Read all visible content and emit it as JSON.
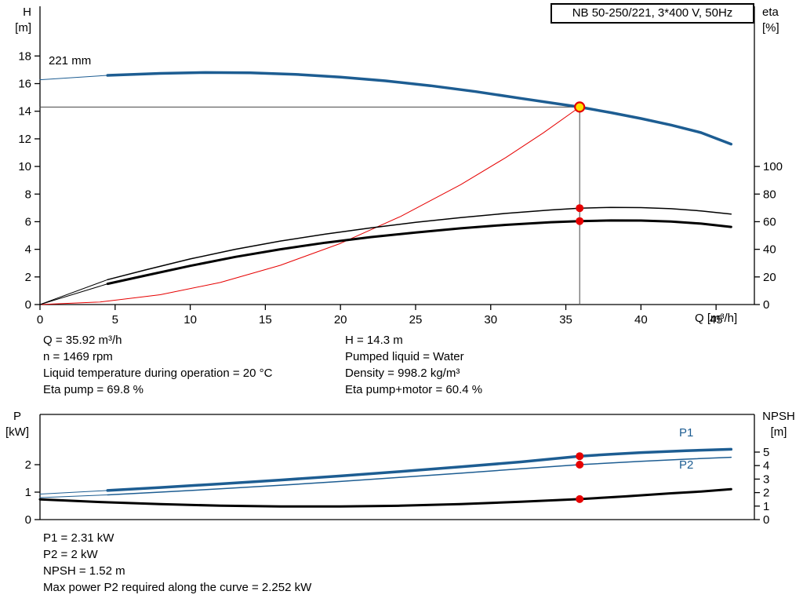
{
  "colors": {
    "curve_blue": "#1d5d92",
    "curve_black": "#000000",
    "system_red": "#e60000",
    "duty_yellow": "#ffe100",
    "ref_gray": "#444444"
  },
  "info": {
    "top_left": [
      "Q = 35.92 m³/h",
      "n = 1469 rpm",
      "Liquid temperature during operation = 20 °C",
      "Eta pump = 69.8 %"
    ],
    "top_right": [
      "H = 14.3 m",
      "Pumped liquid = Water",
      "Density = 998.2 kg/m³",
      "Eta pump+motor = 60.4 %"
    ],
    "bottom": [
      "P1 = 2.31 kW",
      "P2 = 2 kW",
      "NPSH = 1.52 m",
      "Max power P2 required along the curve = 2.252 kW"
    ]
  },
  "chart_data": [
    {
      "type": "line",
      "svg": "top-chart-svg",
      "title": "NB 50-250/221, 3*400 V, 50Hz",
      "impeller_label": "221 mm",
      "x_axis": {
        "title": "Q [m³/h]",
        "lim": [
          0,
          47.55
        ],
        "ticks": [
          0,
          5,
          10,
          15,
          20,
          25,
          30,
          35,
          40,
          45
        ]
      },
      "y_left": {
        "title": "H",
        "unit": "[m]",
        "lim": [
          0,
          21.6
        ],
        "ticks": [
          0,
          2,
          4,
          6,
          8,
          10,
          12,
          14,
          16,
          18
        ]
      },
      "y_right": {
        "title": "eta",
        "unit": "[%]",
        "lim": [
          0,
          216
        ],
        "ticks": [
          0,
          20,
          40,
          60,
          80,
          100
        ]
      },
      "frame": [
        "left",
        "bottom",
        "right"
      ],
      "grid": false,
      "duty_point": {
        "q": 35.92,
        "h": 14.3,
        "eta_pump": 69.8,
        "eta_pump_motor": 60.4
      },
      "series": [
        {
          "name": "duty-flow-refline",
          "axis": "left",
          "color": "#444444",
          "width": 1,
          "points": [
            [
              35.92,
              0
            ],
            [
              35.92,
              14.3
            ]
          ]
        },
        {
          "name": "duty-head-refline",
          "axis": "left",
          "color": "#444444",
          "width": 1,
          "points": [
            [
              0,
              14.3
            ],
            [
              35.92,
              14.3
            ]
          ]
        },
        {
          "name": "system-curve",
          "axis": "left",
          "color": "#e60000",
          "width": 1,
          "points": [
            [
              0,
              0
            ],
            [
              4,
              0.18
            ],
            [
              8,
              0.71
            ],
            [
              12,
              1.6
            ],
            [
              16,
              2.84
            ],
            [
              20,
              4.43
            ],
            [
              24,
              6.38
            ],
            [
              28,
              8.68
            ],
            [
              31,
              10.64
            ],
            [
              33.5,
              12.43
            ],
            [
              35.92,
              14.3
            ]
          ]
        },
        {
          "name": "pump-curve-lead",
          "axis": "left",
          "color": "#1d5d92",
          "width": 1,
          "points": [
            [
              0,
              16.28
            ],
            [
              4.5,
              16.6
            ]
          ]
        },
        {
          "name": "pump-curve-221mm",
          "axis": "left",
          "color": "#1d5d92",
          "width": 3.5,
          "points": [
            [
              4.5,
              16.6
            ],
            [
              8,
              16.74
            ],
            [
              11,
              16.8
            ],
            [
              14,
              16.78
            ],
            [
              17,
              16.67
            ],
            [
              20,
              16.47
            ],
            [
              23,
              16.2
            ],
            [
              26,
              15.85
            ],
            [
              29,
              15.42
            ],
            [
              32,
              14.93
            ],
            [
              35.92,
              14.3
            ],
            [
              38,
              13.9
            ],
            [
              40,
              13.47
            ],
            [
              42,
              13.0
            ],
            [
              44,
              12.45
            ],
            [
              46,
              11.62
            ]
          ]
        },
        {
          "name": "eta-pump-lead",
          "axis": "right",
          "color": "#000000",
          "width": 1,
          "points": [
            [
              0,
              0
            ],
            [
              4.5,
              18
            ]
          ]
        },
        {
          "name": "eta-pump-curve",
          "axis": "right",
          "color": "#000000",
          "width": 1.5,
          "points": [
            [
              4.5,
              18
            ],
            [
              7,
              25
            ],
            [
              10,
              33
            ],
            [
              13,
              40
            ],
            [
              16,
              46
            ],
            [
              19,
              51
            ],
            [
              22,
              55.5
            ],
            [
              25,
              59.5
            ],
            [
              28,
              63
            ],
            [
              31,
              66
            ],
            [
              34,
              68.5
            ],
            [
              35.92,
              69.8
            ],
            [
              38,
              70.3
            ],
            [
              40,
              70.2
            ],
            [
              42,
              69.4
            ],
            [
              44,
              67.8
            ],
            [
              46,
              65.5
            ]
          ]
        },
        {
          "name": "eta-pump-motor-lead",
          "axis": "right",
          "color": "#000000",
          "width": 1,
          "points": [
            [
              0,
              0
            ],
            [
              4.5,
              15
            ]
          ]
        },
        {
          "name": "eta-pump-motor-curve",
          "axis": "right",
          "color": "#000000",
          "width": 3,
          "points": [
            [
              4.5,
              15
            ],
            [
              7,
              21
            ],
            [
              10,
              28
            ],
            [
              13,
              34.5
            ],
            [
              16,
              40
            ],
            [
              19,
              44.8
            ],
            [
              22,
              48.8
            ],
            [
              25,
              52.2
            ],
            [
              28,
              55.2
            ],
            [
              31,
              57.7
            ],
            [
              34,
              59.6
            ],
            [
              35.92,
              60.4
            ],
            [
              38,
              60.9
            ],
            [
              40,
              60.8
            ],
            [
              42,
              60.1
            ],
            [
              44,
              58.6
            ],
            [
              46,
              56.2
            ]
          ]
        }
      ],
      "markers": [
        {
          "name": "duty-point-eta-pump",
          "x": 35.92,
          "y": 69.8,
          "axis": "right",
          "r": 5,
          "fill": "#e60000"
        },
        {
          "name": "duty-point-eta-pump-motor",
          "x": 35.92,
          "y": 60.4,
          "axis": "right",
          "r": 5,
          "fill": "#e60000"
        },
        {
          "name": "duty-point-qh",
          "x": 35.92,
          "y": 14.3,
          "axis": "left",
          "r": 6,
          "fill": "#ffe100",
          "stroke": "#e60000",
          "sw": 2.2
        }
      ]
    },
    {
      "type": "line",
      "svg": "bottom-chart-svg",
      "labels": {
        "p1": "P1",
        "p2": "P2"
      },
      "x_axis": {
        "title": "",
        "lim": [
          0,
          47.55
        ],
        "ticks": []
      },
      "y_left": {
        "title": "P",
        "unit": "[kW]",
        "lim": [
          0,
          3.83
        ],
        "ticks": [
          0,
          1,
          2
        ]
      },
      "y_right": {
        "title": "NPSH",
        "unit": "[m]",
        "lim": [
          0,
          7.79
        ],
        "ticks": [
          0,
          1,
          2,
          3,
          4,
          5
        ]
      },
      "frame": [
        "left",
        "bottom",
        "right",
        "top"
      ],
      "grid": false,
      "duty_point": {
        "q": 35.92,
        "p1": 2.31,
        "p2": 2.0,
        "npsh": 1.52
      },
      "series": [
        {
          "name": "p1-lead",
          "axis": "left",
          "color": "#1d5d92",
          "width": 1,
          "points": [
            [
              0,
              0.93
            ],
            [
              4.5,
              1.06
            ]
          ]
        },
        {
          "name": "p1-curve",
          "axis": "left",
          "color": "#1d5d92",
          "width": 3.5,
          "points": [
            [
              4.5,
              1.06
            ],
            [
              8,
              1.17
            ],
            [
              12,
              1.3
            ],
            [
              16,
              1.44
            ],
            [
              20,
              1.59
            ],
            [
              24,
              1.75
            ],
            [
              28,
              1.92
            ],
            [
              32,
              2.1
            ],
            [
              35.92,
              2.31
            ],
            [
              38,
              2.38
            ],
            [
              40,
              2.44
            ],
            [
              43,
              2.51
            ],
            [
              46,
              2.56
            ]
          ]
        },
        {
          "name": "p2-lead",
          "axis": "left",
          "color": "#1d5d92",
          "width": 1,
          "points": [
            [
              0,
              0.8
            ],
            [
              4.5,
              0.9
            ]
          ]
        },
        {
          "name": "p2-curve",
          "axis": "left",
          "color": "#1d5d92",
          "width": 1.5,
          "points": [
            [
              4.5,
              0.9
            ],
            [
              8,
              1.0
            ],
            [
              12,
              1.12
            ],
            [
              16,
              1.25
            ],
            [
              20,
              1.39
            ],
            [
              24,
              1.54
            ],
            [
              28,
              1.69
            ],
            [
              32,
              1.85
            ],
            [
              35.92,
              2.0
            ],
            [
              40,
              2.12
            ],
            [
              43,
              2.2
            ],
            [
              46,
              2.27
            ]
          ]
        },
        {
          "name": "npsh-curve",
          "axis": "right",
          "color": "#000000",
          "width": 3,
          "points": [
            [
              0,
              1.5
            ],
            [
              4,
              1.3
            ],
            [
              8,
              1.15
            ],
            [
              12,
              1.03
            ],
            [
              16,
              0.97
            ],
            [
              20,
              0.97
            ],
            [
              24,
              1.03
            ],
            [
              28,
              1.15
            ],
            [
              32,
              1.32
            ],
            [
              35.92,
              1.52
            ],
            [
              39,
              1.72
            ],
            [
              42,
              1.95
            ],
            [
              44,
              2.08
            ],
            [
              46,
              2.25
            ]
          ]
        }
      ],
      "markers": [
        {
          "name": "duty-point-p1",
          "x": 35.92,
          "y": 2.31,
          "axis": "left",
          "r": 5,
          "fill": "#e60000"
        },
        {
          "name": "duty-point-p2",
          "x": 35.92,
          "y": 2.0,
          "axis": "left",
          "r": 5,
          "fill": "#e60000"
        },
        {
          "name": "duty-point-npsh",
          "x": 35.92,
          "y": 1.52,
          "axis": "right",
          "r": 5,
          "fill": "#e60000"
        }
      ]
    }
  ]
}
